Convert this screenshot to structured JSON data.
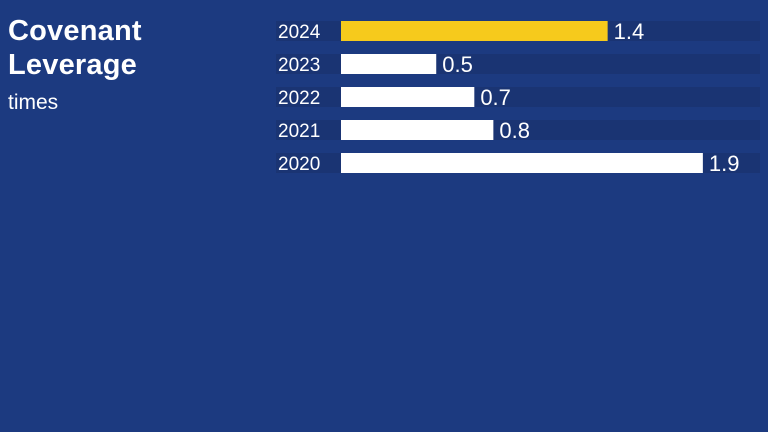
{
  "title_line1": "Covenant",
  "title_line2": "Leverage",
  "subtitle": "times",
  "colors": {
    "background": "#1c3a80",
    "track": "#1a3473",
    "bar": "#ffffff",
    "highlight": "#f6ca1c",
    "text": "#ffffff"
  },
  "chart_data": {
    "type": "bar",
    "orientation": "horizontal",
    "categories": [
      "2024",
      "2023",
      "2022",
      "2021",
      "2020"
    ],
    "values": [
      1.4,
      0.5,
      0.7,
      0.8,
      1.9
    ],
    "value_labels": [
      "1.4",
      "0.5",
      "0.7",
      "0.8",
      "1.9"
    ],
    "highlight_category": "2024",
    "title": "Covenant Leverage",
    "xlabel": "",
    "ylabel": "times",
    "xlim": [
      0,
      2.2
    ],
    "grid": false,
    "legend": "none"
  }
}
